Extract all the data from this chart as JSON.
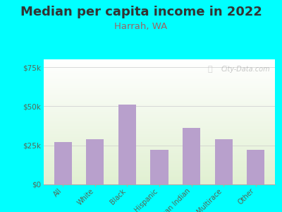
{
  "title": "Median per capita income in 2022",
  "subtitle": "Harrah, WA",
  "categories": [
    "All",
    "White",
    "Black",
    "Hispanic",
    "American Indian",
    "Multirace",
    "Other"
  ],
  "values": [
    27000,
    29000,
    51000,
    22000,
    36000,
    29000,
    22000
  ],
  "bar_color": "#b8a0cc",
  "title_fontsize": 13,
  "subtitle_fontsize": 9.5,
  "subtitle_color": "#996666",
  "tick_label_color": "#556655",
  "background_outer": "#00ffff",
  "ylim": [
    0,
    80000
  ],
  "yticks": [
    0,
    25000,
    50000,
    75000
  ],
  "ytick_labels": [
    "$0",
    "$25k",
    "$50k",
    "$75k"
  ],
  "watermark": "City-Data.com"
}
